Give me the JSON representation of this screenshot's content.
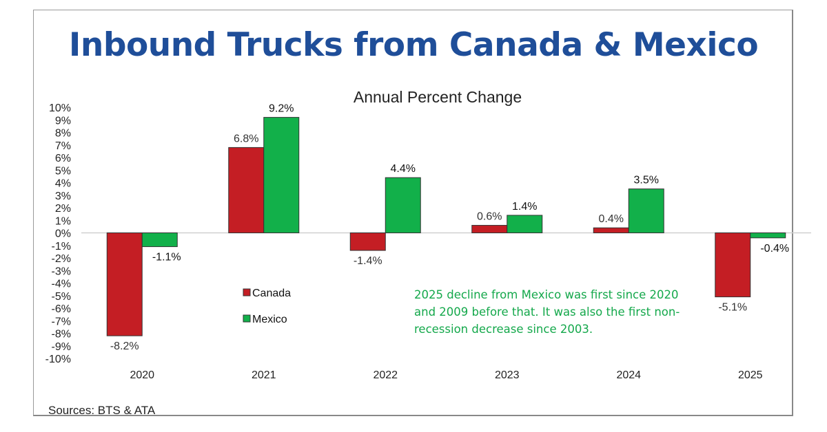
{
  "chart_data": {
    "type": "bar",
    "title": "Inbound Trucks from Canada & Mexico",
    "subtitle": "Annual Percent Change",
    "categories": [
      "2020",
      "2021",
      "2022",
      "2023",
      "2024",
      "2025"
    ],
    "series": [
      {
        "name": "Canada",
        "color": "#c41e24",
        "values": [
          -8.2,
          6.8,
          -1.4,
          0.6,
          0.4,
          -5.1
        ],
        "labels": [
          "-8.2%",
          "6.8%",
          "-1.4%",
          "0.6%",
          "0.4%",
          "-5.1%"
        ]
      },
      {
        "name": "Mexico",
        "color": "#12b04a",
        "values": [
          -1.1,
          9.2,
          4.4,
          1.4,
          3.5,
          -0.4
        ],
        "labels": [
          "-1.1%",
          "9.2%",
          "4.4%",
          "1.4%",
          "3.5%",
          "-0.4%"
        ]
      }
    ],
    "ylim": [
      -10,
      10
    ],
    "yticks": [
      "10%",
      "9%",
      "8%",
      "7%",
      "6%",
      "5%",
      "4%",
      "3%",
      "2%",
      "1%",
      "0%",
      "-1%",
      "-2%",
      "-3%",
      "-4%",
      "-5%",
      "-6%",
      "-7%",
      "-8%",
      "-9%",
      "-10%"
    ],
    "legend_placement": "middle-left",
    "grid": false,
    "annotation": "2025 decline from Mexico was first since 2020 and 2009 before that. It was also the first non-recession decrease since 2003.",
    "source": "Sources: BTS & ATA"
  }
}
